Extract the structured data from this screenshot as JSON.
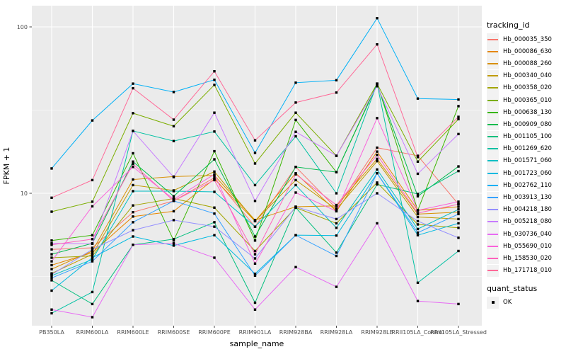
{
  "chart_data": {
    "type": "line",
    "title": "",
    "xlabel": "sample_name",
    "ylabel": "FPKM + 1",
    "y_scale": "log10",
    "y_ticks": [
      10,
      100
    ],
    "y_tick_labels": [
      "10",
      "100"
    ],
    "y_minor_ticks": [
      3.162,
      31.623
    ],
    "ylim": [
      1.6,
      134
    ],
    "grid": true,
    "legend_position": "right",
    "categories": [
      "PB350LA",
      "RRIM600LA",
      "RRIM600LE",
      "RRIM600SE",
      "RRIM600PE",
      "RRIM901LA",
      "RRIM928BA",
      "RRIM928LA",
      "RRIM928LE",
      "RRII105LA_Control",
      "RRII105LA_Stressed"
    ],
    "legend_title": "tracking_id",
    "quant_legend": {
      "title": "quant_status",
      "items": [
        {
          "label": "OK",
          "marker": "black-square"
        }
      ]
    },
    "colors": {
      "panel_bg": "#EBEBEB",
      "grid": "#FFFFFF",
      "point": "#000000",
      "tick_text": "#4D4D4D",
      "axis_text": "#000000",
      "key_bg": "#F2F2F2"
    },
    "series": [
      {
        "name": "Hb_000035_350",
        "color": "#F8766D",
        "values": [
          4.6,
          4.7,
          7.7,
          9.0,
          12.4,
          6.3,
          14.4,
          8.1,
          18.8,
          16.8,
          8.6
        ]
      },
      {
        "name": "Hb_000086_630",
        "color": "#E58700",
        "values": [
          3.7,
          4.4,
          7.25,
          7.8,
          12.2,
          6.8,
          13.2,
          7.8,
          17.8,
          7.9,
          8.3
        ]
      },
      {
        "name": "Hb_000088_260",
        "color": "#D89000",
        "values": [
          3.5,
          4.5,
          12.1,
          12.6,
          12.8,
          6.9,
          8.3,
          8.4,
          16.1,
          7.5,
          7.7
        ]
      },
      {
        "name": "Hb_000340_040",
        "color": "#C09B00",
        "values": [
          3.3,
          4.3,
          11.2,
          10.4,
          13.5,
          6.8,
          12.0,
          8.0,
          15.6,
          7.2,
          7.0
        ]
      },
      {
        "name": "Hb_000358_020",
        "color": "#A3A500",
        "values": [
          4.1,
          4.2,
          8.45,
          9.3,
          8.2,
          4.5,
          8.2,
          6.6,
          11.6,
          6.5,
          6.2
        ]
      },
      {
        "name": "Hb_000365_010",
        "color": "#7CAE00",
        "values": [
          7.75,
          8.9,
          30.3,
          25.3,
          44.8,
          15.1,
          30.5,
          16.8,
          45.6,
          15.5,
          27.9
        ]
      },
      {
        "name": "Hb_000638_130",
        "color": "#39B600",
        "values": [
          5.2,
          5.6,
          17.4,
          5.2,
          17.9,
          5.2,
          27.6,
          13.4,
          45.6,
          7.9,
          33.4
        ]
      },
      {
        "name": "Hb_000909_080",
        "color": "#00BB4E",
        "values": [
          4.3,
          5.0,
          15.5,
          9.6,
          16.0,
          5.5,
          14.4,
          13.4,
          45.0,
          9.6,
          14.5
        ]
      },
      {
        "name": "Hb_001105_100",
        "color": "#00BF7D",
        "values": [
          3.0,
          2.16,
          4.9,
          5.3,
          6.7,
          2.2,
          8.2,
          4.4,
          11.3,
          9.9,
          13.6
        ]
      },
      {
        "name": "Hb_001269_620",
        "color": "#00C1A3",
        "values": [
          1.9,
          2.55,
          23.7,
          20.6,
          23.5,
          11.2,
          22.0,
          10.0,
          45.6,
          2.9,
          4.5
        ]
      },
      {
        "name": "Hb_001571_060",
        "color": "#00BFC4",
        "values": [
          3.2,
          4.0,
          10.3,
          10.3,
          10.2,
          6.3,
          11.2,
          6.2,
          13.9,
          6.1,
          8.0
        ]
      },
      {
        "name": "Hb_001723_060",
        "color": "#00BAE0",
        "values": [
          2.6,
          4.1,
          5.5,
          4.85,
          5.6,
          3.28,
          5.6,
          5.57,
          13.2,
          5.6,
          6.6
        ]
      },
      {
        "name": "Hb_002762_110",
        "color": "#00B0F6",
        "values": [
          14.1,
          27.4,
          45.6,
          40.6,
          48.1,
          17.5,
          46.2,
          47.8,
          112.8,
          37.1,
          36.6
        ]
      },
      {
        "name": "Hb_003913_130",
        "color": "#35A2FF",
        "values": [
          3.1,
          3.9,
          6.7,
          9.0,
          7.55,
          3.2,
          5.6,
          4.2,
          13.2,
          5.8,
          7.5
        ]
      },
      {
        "name": "Hb_004218_180",
        "color": "#9590FF",
        "values": [
          3.25,
          4.6,
          6.0,
          6.9,
          6.3,
          4.06,
          8.3,
          7.0,
          10.0,
          6.8,
          5.4
        ]
      },
      {
        "name": "Hb_005218_080",
        "color": "#C77CFF",
        "values": [
          5.0,
          4.97,
          23.7,
          12.5,
          30.5,
          9.0,
          23.4,
          16.8,
          44.0,
          13.1,
          22.7
        ]
      },
      {
        "name": "Hb_030736_040",
        "color": "#E76BF3",
        "values": [
          2.0,
          1.8,
          4.9,
          5.0,
          4.1,
          2.0,
          3.6,
          2.74,
          6.6,
          2.25,
          2.16
        ]
      },
      {
        "name": "Hb_055690_010",
        "color": "#FA62DB",
        "values": [
          3.9,
          8.35,
          14.4,
          9.2,
          13.0,
          3.78,
          10.1,
          7.8,
          28.3,
          7.9,
          8.9
        ]
      },
      {
        "name": "Hb_158530_020",
        "color": "#FF62BC",
        "values": [
          4.9,
          5.3,
          15.0,
          9.0,
          12.0,
          4.3,
          13.0,
          8.5,
          17.0,
          7.6,
          8.6
        ]
      },
      {
        "name": "Hb_171718_010",
        "color": "#FF6A98",
        "values": [
          9.4,
          12.0,
          42.8,
          27.7,
          54.1,
          20.8,
          35.1,
          40.3,
          78.5,
          16.5,
          28.8
        ]
      }
    ]
  }
}
